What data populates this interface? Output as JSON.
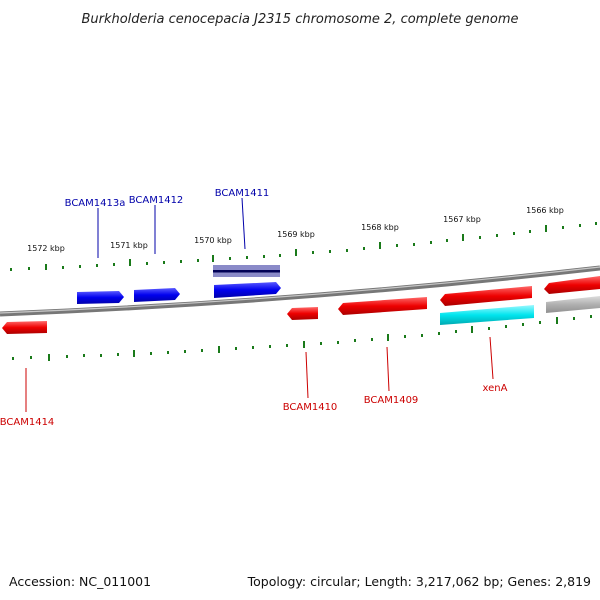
{
  "header": {
    "title": "Burkholderia cenocepacia J2315 chromosome 2, complete genome"
  },
  "footer": {
    "accession": "Accession: NC_011001",
    "summary": "Topology: circular; Length: 3,217,062 bp; Genes: 2,819"
  },
  "colors": {
    "forward": "#0000ee",
    "reverse": "#ee0000",
    "highlight": "#00e5ee",
    "pseudo": "#b0b0b0",
    "backbone": "#808080",
    "ticks": "#1a7a1a",
    "forward_label": "#0000aa",
    "reverse_label": "#cc0000"
  },
  "scale": {
    "unit": "kbp",
    "labels": [
      "1572 kbp",
      "1571 kbp",
      "1570 kbp",
      "1569 kbp",
      "1568 kbp",
      "1567 kbp",
      "1566 kbp"
    ]
  },
  "genes": [
    {
      "label": "BCAM1413a",
      "strand": "forward"
    },
    {
      "label": "BCAM1412",
      "strand": "forward"
    },
    {
      "label": "BCAM1411",
      "strand": "forward"
    },
    {
      "label": "BCAM1414",
      "strand": "reverse"
    },
    {
      "label": "BCAM1410",
      "strand": "reverse"
    },
    {
      "label": "BCAM1409",
      "strand": "reverse"
    },
    {
      "label": "xenA",
      "strand": "reverse"
    }
  ]
}
